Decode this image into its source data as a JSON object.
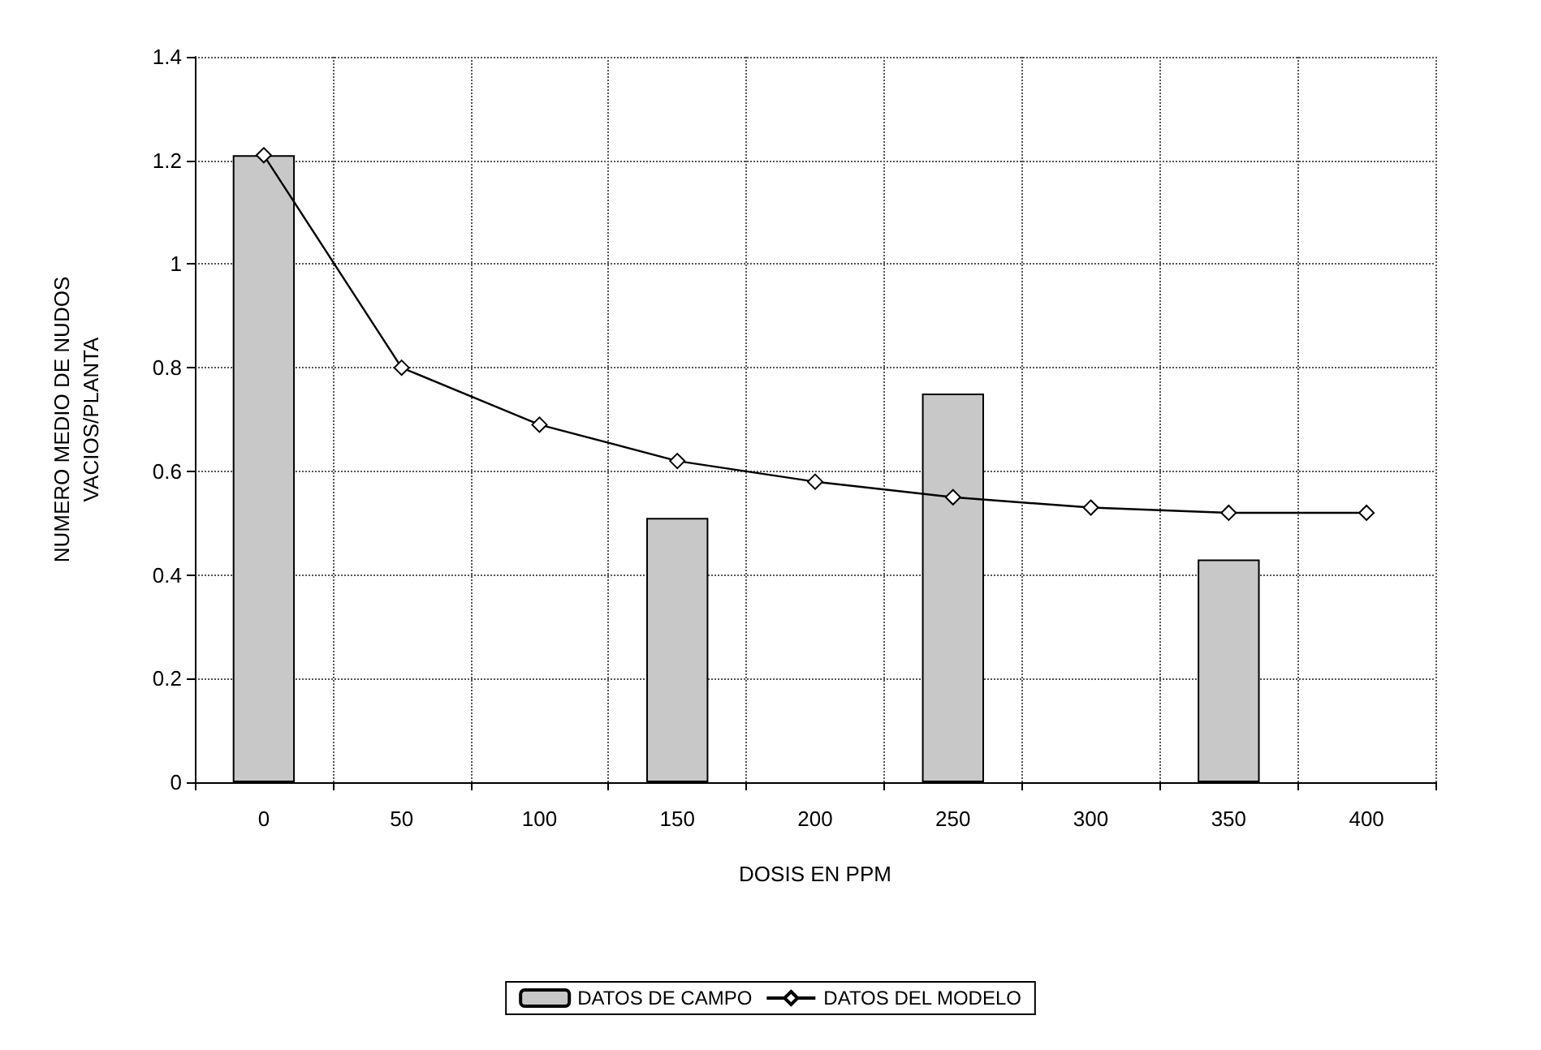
{
  "chart_data": {
    "type": "bar",
    "xlabel": "DOSIS EN PPM",
    "ylabel": "NUMERO MEDIO DE NUDOS\nVACIOS/PLANTA",
    "categories": [
      "0",
      "50",
      "100",
      "150",
      "200",
      "250",
      "300",
      "350",
      "400"
    ],
    "series": [
      {
        "name": "DATOS DE CAMPO",
        "color": "#c8c8c8",
        "values": [
          1.21,
          null,
          null,
          0.51,
          null,
          0.75,
          null,
          0.43,
          null
        ]
      },
      {
        "name": "DATOS DEL MODELO",
        "type": "line",
        "color": "#000000",
        "marker": "diamond",
        "values": [
          1.21,
          0.8,
          0.69,
          0.62,
          0.58,
          0.55,
          0.53,
          0.52,
          0.52
        ]
      }
    ],
    "ylim": [
      0,
      1.4
    ],
    "yticks": [
      0,
      0.2,
      0.4,
      0.6,
      0.8,
      1,
      1.2,
      1.4
    ],
    "grid": true,
    "legend": "bottom"
  }
}
